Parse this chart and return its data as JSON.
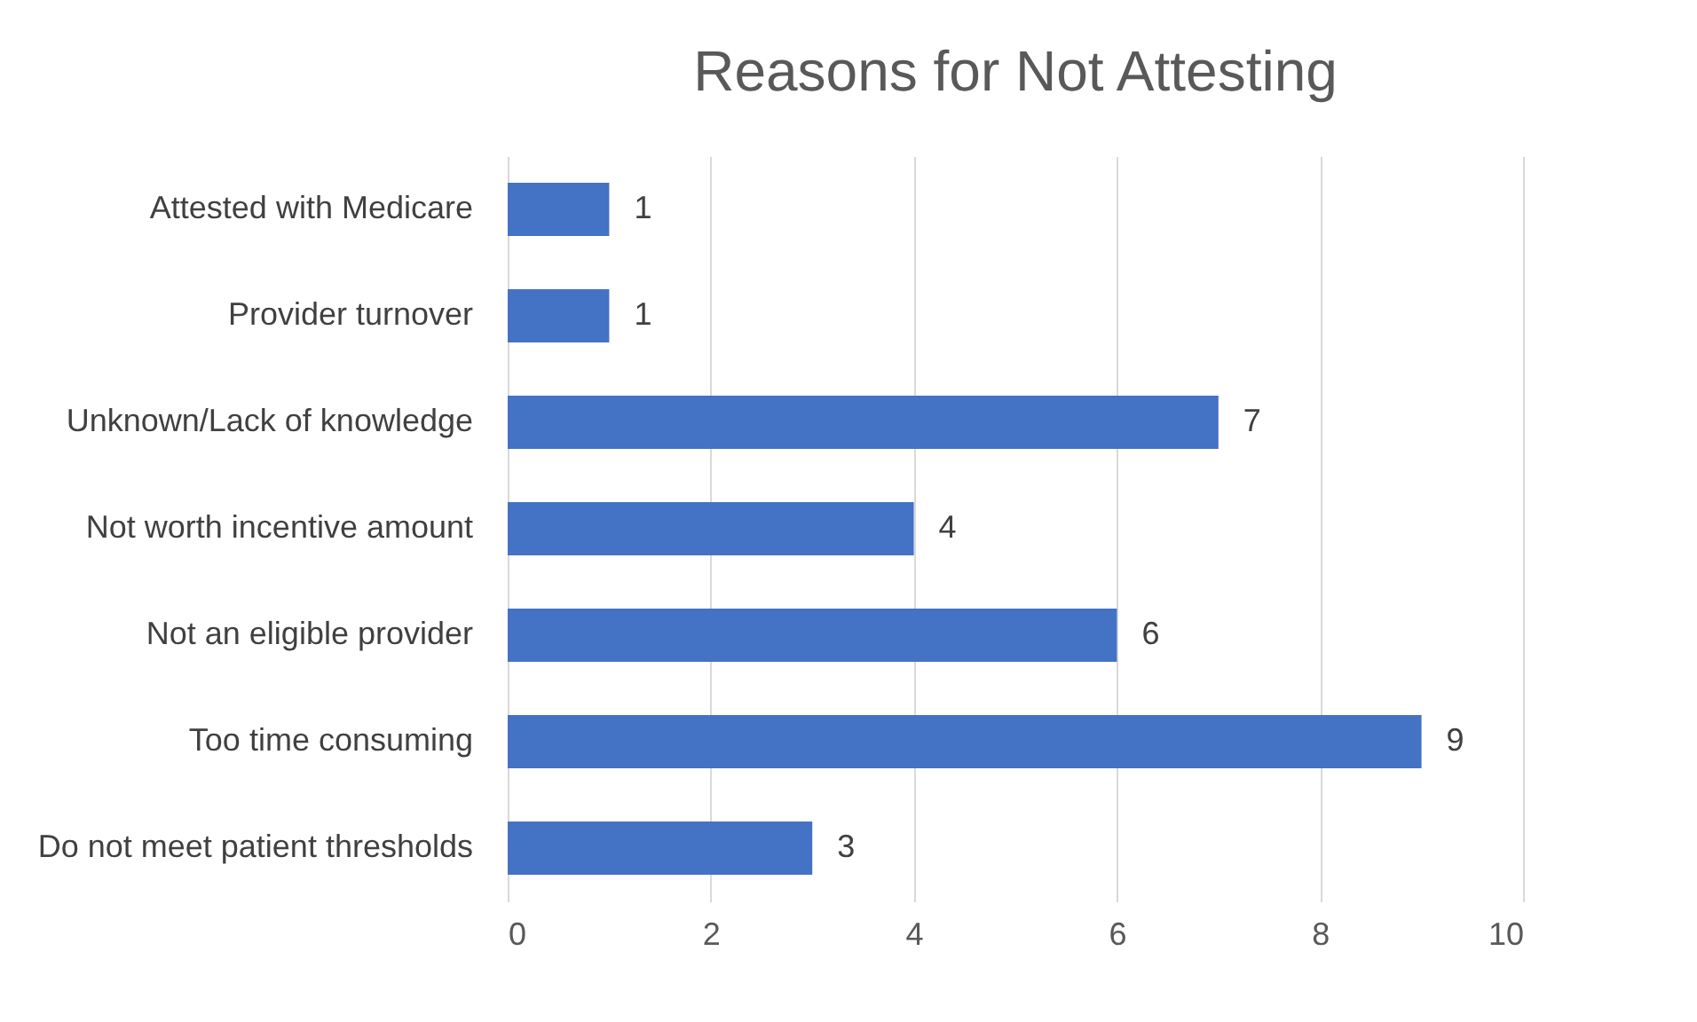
{
  "chart_data": {
    "type": "bar",
    "orientation": "horizontal",
    "title": "Reasons for Not Attesting",
    "categories": [
      "Attested with Medicare",
      "Provider turnover",
      "Unknown/Lack of knowledge",
      "Not worth incentive amount",
      "Not an eligible provider",
      "Too time consuming",
      "Do not meet patient thresholds"
    ],
    "values": [
      1,
      1,
      7,
      4,
      6,
      9,
      3
    ],
    "color": "#4472c4",
    "xlim": [
      0,
      10
    ],
    "xticks": [
      0,
      2,
      4,
      6,
      8,
      10
    ],
    "grid": "x",
    "data_labels": true
  }
}
